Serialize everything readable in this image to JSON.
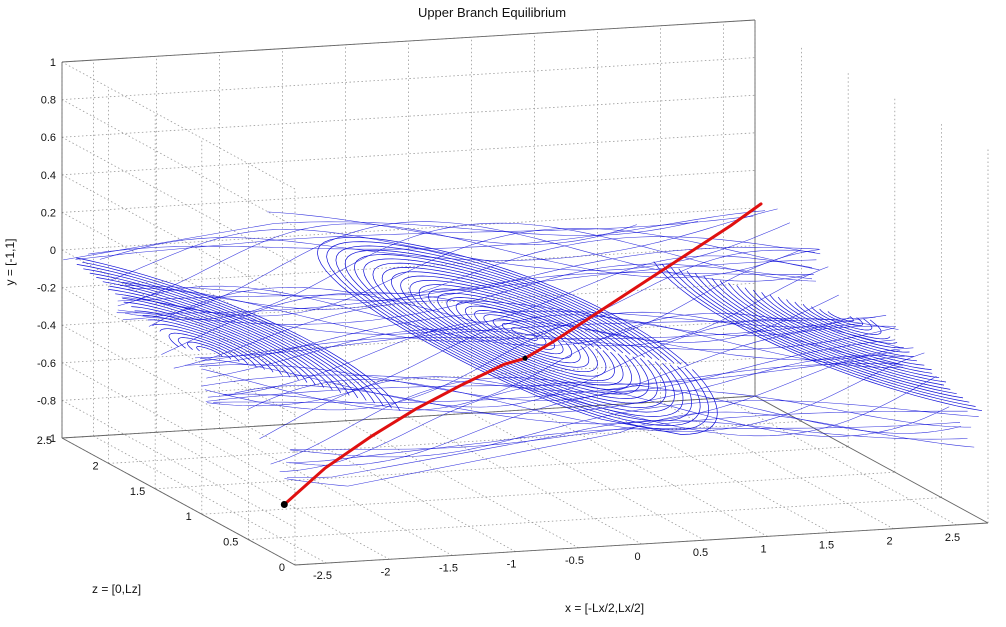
{
  "chart_data": {
    "type": "line",
    "projection": "3d",
    "title": "Upper Branch Equilibrium",
    "xlabel": "x = [-Lx/2,Lx/2]",
    "ylabel": "y = [-1,1]",
    "zlabel": "z = [0,Lz]",
    "xlim": [
      -2.75,
      2.75
    ],
    "ylim": [
      -1,
      1
    ],
    "zlim": [
      0,
      2.5
    ],
    "grid": true,
    "x_ticks": [
      "-2.5",
      "-2",
      "-1.5",
      "-1",
      "-0.5",
      "0",
      "0.5",
      "1",
      "1.5",
      "2",
      "2.5"
    ],
    "y_ticks": [
      "-1",
      "-0.8",
      "-0.6",
      "-0.4",
      "-0.2",
      "0",
      "0.2",
      "0.4",
      "0.6",
      "0.8",
      "1"
    ],
    "z_ticks": [
      "0",
      "0.5",
      "1",
      "1.5",
      "2",
      "2.5"
    ],
    "series": [
      {
        "color": "#1010d8",
        "style": "streamlines",
        "note_points": "dense bundle of trajectories filling y ≈ [-0.6, 0.2] across x ∈ [-2.75, 2.75], z ∈ [0, 2.5], forming three spiral vortices centered near x = -2.5, 0, 2.5"
      },
      {
        "color": "#e01010",
        "style": "curve",
        "x": [
          -2.65,
          -2.2,
          -1.7,
          -1.2,
          -0.7,
          -0.2,
          0.0,
          0.3,
          0.8,
          1.3,
          1.8,
          2.3,
          2.65
        ],
        "y": [
          -0.75,
          -0.62,
          -0.52,
          -0.45,
          -0.4,
          -0.36,
          -0.35,
          -0.3,
          -0.22,
          -0.14,
          -0.06,
          0.02,
          0.08
        ],
        "z": [
          0.25,
          0.42,
          0.6,
          0.8,
          1.0,
          1.2,
          1.25,
          1.35,
          1.55,
          1.75,
          1.95,
          2.15,
          2.3
        ]
      }
    ]
  }
}
